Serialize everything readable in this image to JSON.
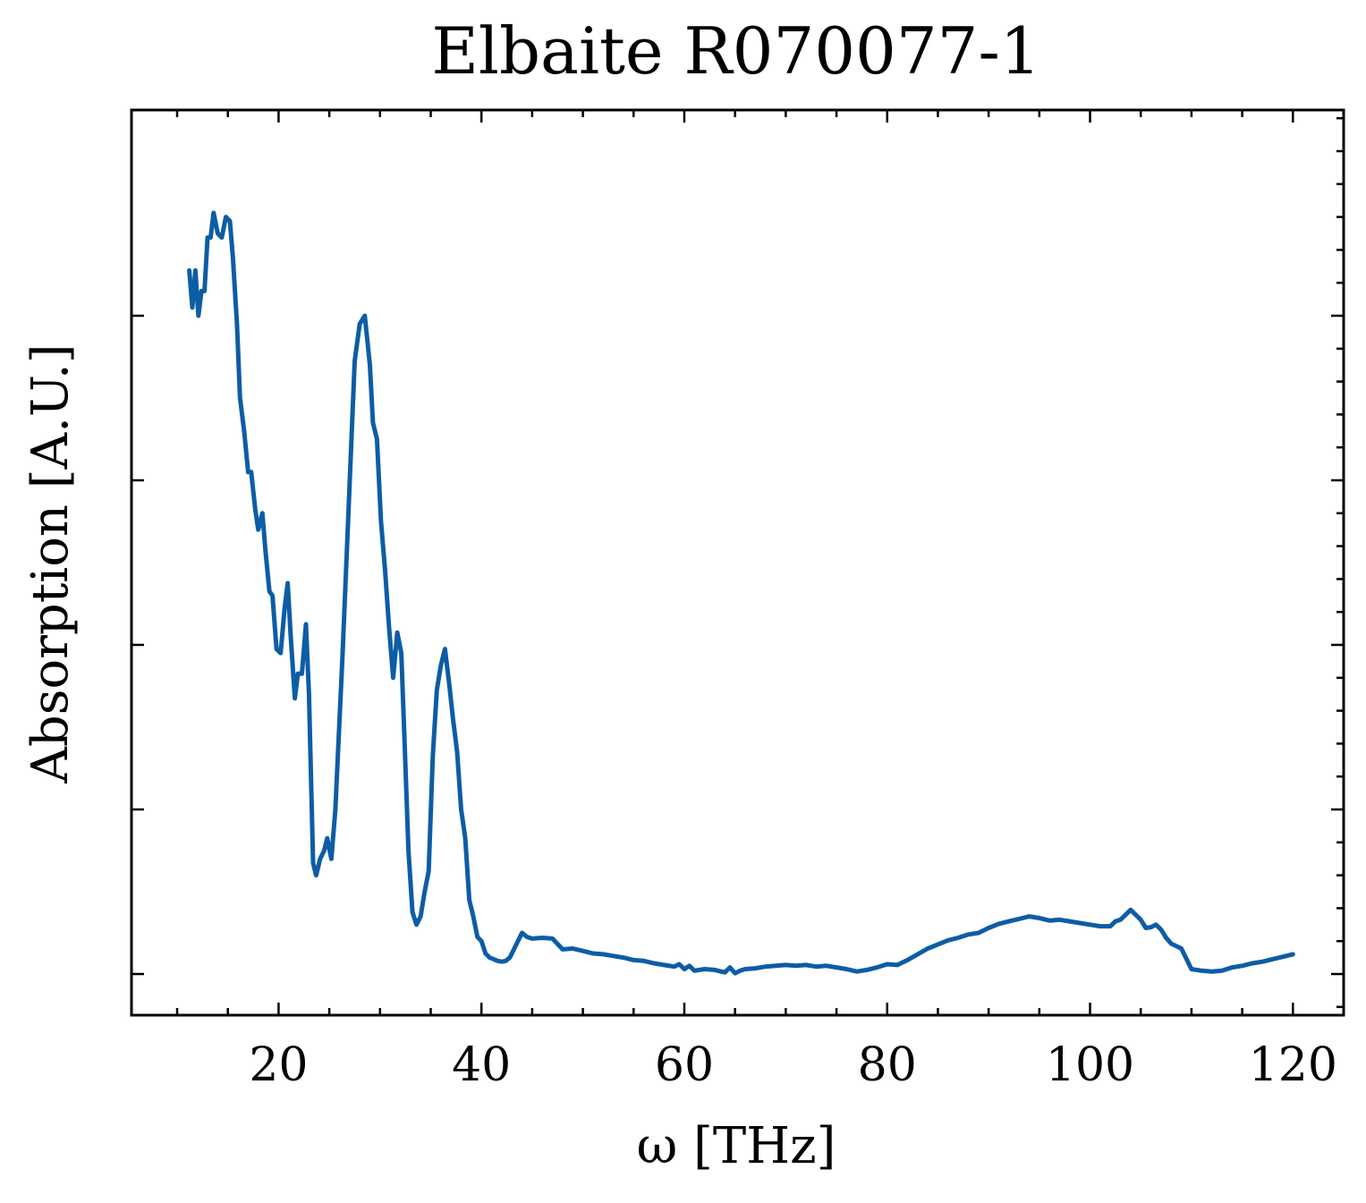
{
  "chart_data": {
    "type": "line",
    "title": "Elbaite R070077-1",
    "xlabel": "ω [THz]",
    "ylabel": "Absorption [A.U.]",
    "xlim": [
      5.5,
      125
    ],
    "ylim": [
      -0.05,
      1.05
    ],
    "x_ticks": [
      20,
      40,
      60,
      80,
      100,
      120
    ],
    "x_tick_labels": [
      "20",
      "40",
      "60",
      "80",
      "100",
      "120"
    ],
    "x_minor_step": 5,
    "y_ticks": [
      0.0,
      0.2,
      0.4,
      0.6,
      0.8
    ],
    "y_minor_step": 0.04,
    "y_tick_labels_shown": false,
    "grid": false,
    "tick_direction": "in",
    "series": [
      {
        "color": "#0C5DA5",
        "x": [
          11.2,
          11.5,
          11.8,
          12.1,
          12.4,
          12.7,
          13.0,
          13.3,
          13.6,
          14.0,
          14.4,
          14.8,
          15.2,
          15.5,
          15.9,
          16.2,
          16.6,
          17.0,
          17.3,
          17.7,
          18.0,
          18.4,
          18.7,
          19.1,
          19.4,
          19.8,
          20.2,
          20.6,
          20.9,
          21.2,
          21.6,
          21.9,
          22.3,
          22.7,
          23.0,
          23.4,
          23.7,
          24.1,
          24.5,
          24.8,
          25.2,
          25.6,
          25.9,
          26.3,
          26.7,
          27.0,
          27.5,
          28.0,
          28.5,
          29.0,
          29.3,
          29.7,
          30.1,
          30.5,
          30.9,
          31.3,
          31.7,
          32.1,
          32.4,
          32.8,
          33.2,
          33.6,
          34.0,
          34.4,
          34.8,
          35.2,
          35.6,
          36.0,
          36.4,
          36.8,
          37.2,
          37.6,
          38.0,
          38.4,
          38.8,
          39.2,
          39.6,
          40.0,
          40.4,
          40.8,
          41.2,
          41.6,
          42.0,
          42.4,
          42.8,
          43.2,
          43.6,
          44.0,
          44.5,
          45.0,
          46.0,
          47.0,
          48.0,
          49.0,
          50.0,
          51.0,
          52.0,
          53.0,
          54.0,
          55.0,
          56.0,
          57.0,
          58.0,
          59.0,
          59.5,
          60.0,
          60.5,
          61.0,
          62.0,
          63.0,
          64.0,
          64.5,
          65.0,
          65.5,
          66.0,
          67.0,
          68.0,
          69.0,
          70.0,
          71.0,
          72.0,
          73.0,
          74.0,
          75.0,
          76.0,
          77.0,
          78.0,
          79.0,
          80.0,
          81.0,
          82.0,
          83.0,
          84.0,
          85.0,
          86.0,
          87.0,
          88.0,
          89.0,
          90.0,
          91.0,
          92.0,
          93.0,
          94.0,
          95.0,
          96.0,
          97.0,
          98.0,
          99.0,
          100.0,
          101.0,
          102.0,
          102.5,
          103.0,
          103.5,
          104.0,
          104.5,
          105.0,
          105.5,
          106.0,
          106.5,
          107.0,
          107.5,
          108.0,
          108.5,
          109.0,
          110.0,
          111.0,
          112.0,
          113.0,
          114.0,
          115.0,
          116.0,
          117.0,
          118.0,
          119.0,
          120.0
        ],
        "y": [
          0.855,
          0.81,
          0.855,
          0.8,
          0.83,
          0.83,
          0.895,
          0.895,
          0.925,
          0.9,
          0.895,
          0.92,
          0.915,
          0.87,
          0.79,
          0.7,
          0.66,
          0.61,
          0.61,
          0.565,
          0.54,
          0.56,
          0.515,
          0.465,
          0.46,
          0.395,
          0.39,
          0.445,
          0.475,
          0.41,
          0.335,
          0.365,
          0.365,
          0.425,
          0.34,
          0.135,
          0.12,
          0.14,
          0.15,
          0.165,
          0.14,
          0.2,
          0.28,
          0.385,
          0.505,
          0.595,
          0.745,
          0.79,
          0.8,
          0.74,
          0.67,
          0.65,
          0.55,
          0.49,
          0.42,
          0.36,
          0.415,
          0.39,
          0.29,
          0.15,
          0.075,
          0.06,
          0.07,
          0.1,
          0.125,
          0.265,
          0.345,
          0.375,
          0.395,
          0.355,
          0.31,
          0.27,
          0.2,
          0.165,
          0.09,
          0.07,
          0.045,
          0.04,
          0.025,
          0.02,
          0.018,
          0.016,
          0.015,
          0.016,
          0.02,
          0.03,
          0.04,
          0.05,
          0.045,
          0.043,
          0.044,
          0.043,
          0.03,
          0.031,
          0.028,
          0.025,
          0.024,
          0.022,
          0.02,
          0.017,
          0.016,
          0.013,
          0.011,
          0.009,
          0.012,
          0.006,
          0.01,
          0.004,
          0.006,
          0.005,
          0.002,
          0.008,
          0.001,
          0.004,
          0.006,
          0.007,
          0.009,
          0.01,
          0.011,
          0.01,
          0.011,
          0.009,
          0.01,
          0.008,
          0.006,
          0.003,
          0.005,
          0.008,
          0.012,
          0.011,
          0.017,
          0.024,
          0.031,
          0.036,
          0.041,
          0.044,
          0.048,
          0.05,
          0.056,
          0.061,
          0.064,
          0.067,
          0.07,
          0.068,
          0.065,
          0.066,
          0.064,
          0.062,
          0.06,
          0.058,
          0.058,
          0.064,
          0.066,
          0.072,
          0.078,
          0.072,
          0.066,
          0.056,
          0.057,
          0.06,
          0.054,
          0.044,
          0.037,
          0.034,
          0.031,
          0.006,
          0.004,
          0.003,
          0.004,
          0.008,
          0.01,
          0.013,
          0.015,
          0.018,
          0.021,
          0.024
        ]
      }
    ]
  }
}
